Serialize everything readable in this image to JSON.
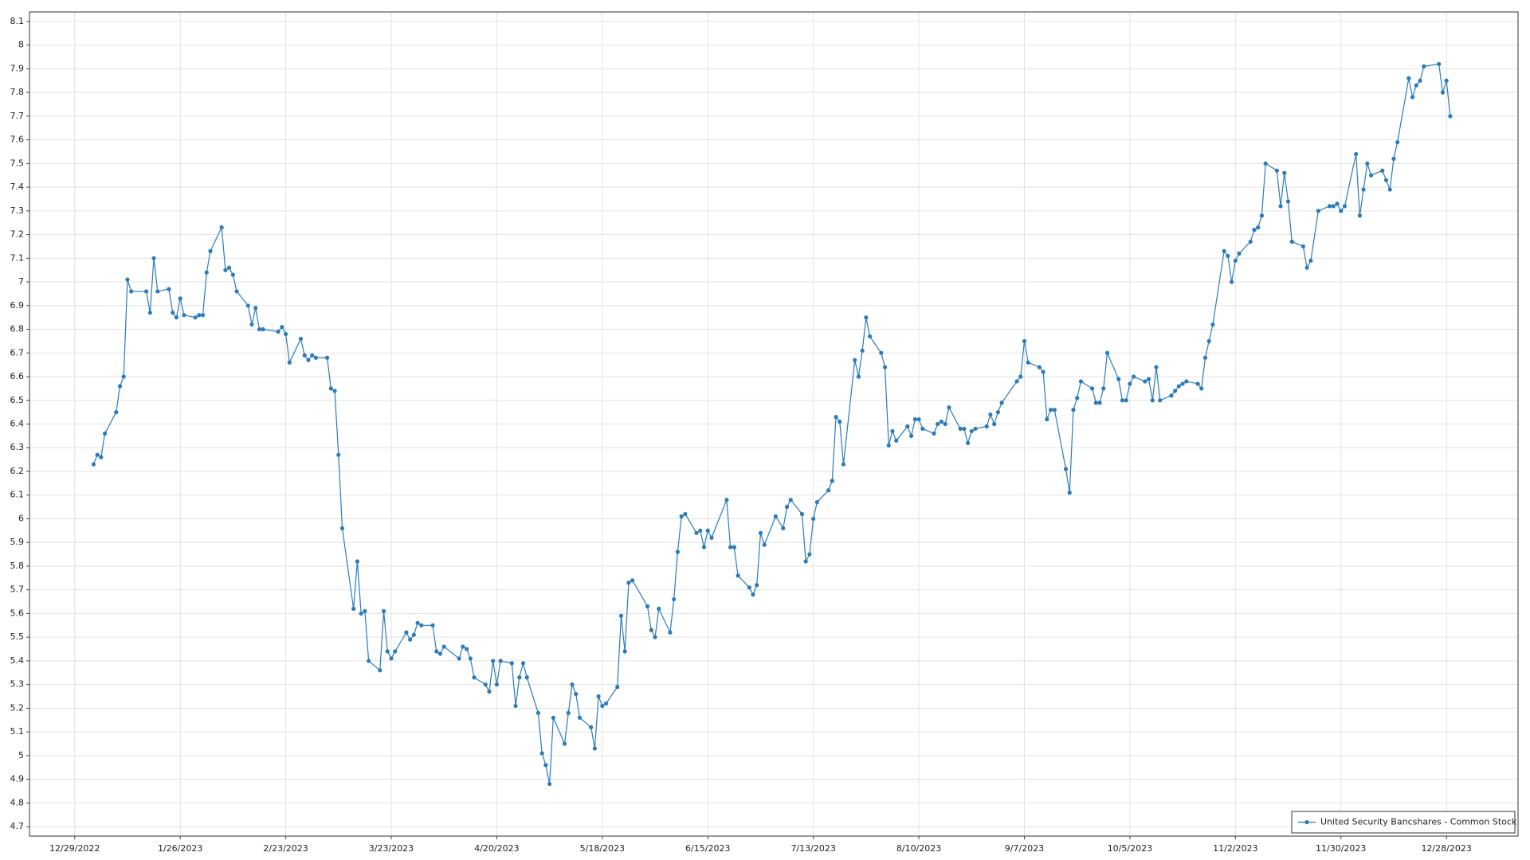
{
  "chart_data": {
    "type": "line",
    "x": [
      "1/3/2023",
      "1/4/2023",
      "1/5/2023",
      "1/6/2023",
      "1/9/2023",
      "1/10/2023",
      "1/11/2023",
      "1/12/2023",
      "1/13/2023",
      "1/17/2023",
      "1/18/2023",
      "1/19/2023",
      "1/20/2023",
      "1/23/2023",
      "1/24/2023",
      "1/25/2023",
      "1/26/2023",
      "1/27/2023",
      "1/30/2023",
      "1/31/2023",
      "2/1/2023",
      "2/2/2023",
      "2/3/2023",
      "2/6/2023",
      "2/7/2023",
      "2/8/2023",
      "2/9/2023",
      "2/10/2023",
      "2/13/2023",
      "2/14/2023",
      "2/15/2023",
      "2/16/2023",
      "2/17/2023",
      "2/21/2023",
      "2/22/2023",
      "2/23/2023",
      "2/24/2023",
      "2/27/2023",
      "2/28/2023",
      "3/1/2023",
      "3/2/2023",
      "3/3/2023",
      "3/6/2023",
      "3/7/2023",
      "3/8/2023",
      "3/9/2023",
      "3/10/2023",
      "3/13/2023",
      "3/14/2023",
      "3/15/2023",
      "3/16/2023",
      "3/17/2023",
      "3/20/2023",
      "3/21/2023",
      "3/22/2023",
      "3/23/2023",
      "3/24/2023",
      "3/27/2023",
      "3/28/2023",
      "3/29/2023",
      "3/30/2023",
      "3/31/2023",
      "4/3/2023",
      "4/4/2023",
      "4/5/2023",
      "4/6/2023",
      "4/10/2023",
      "4/11/2023",
      "4/12/2023",
      "4/13/2023",
      "4/14/2023",
      "4/17/2023",
      "4/18/2023",
      "4/19/2023",
      "4/20/2023",
      "4/21/2023",
      "4/24/2023",
      "4/25/2023",
      "4/26/2023",
      "4/27/2023",
      "4/28/2023",
      "5/1/2023",
      "5/2/2023",
      "5/3/2023",
      "5/4/2023",
      "5/5/2023",
      "5/8/2023",
      "5/9/2023",
      "5/10/2023",
      "5/11/2023",
      "5/12/2023",
      "5/15/2023",
      "5/16/2023",
      "5/17/2023",
      "5/18/2023",
      "5/19/2023",
      "5/22/2023",
      "5/23/2023",
      "5/24/2023",
      "5/25/2023",
      "5/26/2023",
      "5/30/2023",
      "5/31/2023",
      "6/1/2023",
      "6/2/2023",
      "6/5/2023",
      "6/6/2023",
      "6/7/2023",
      "6/8/2023",
      "6/9/2023",
      "6/12/2023",
      "6/13/2023",
      "6/14/2023",
      "6/15/2023",
      "6/16/2023",
      "6/20/2023",
      "6/21/2023",
      "6/22/2023",
      "6/23/2023",
      "6/26/2023",
      "6/27/2023",
      "6/28/2023",
      "6/29/2023",
      "6/30/2023",
      "7/3/2023",
      "7/5/2023",
      "7/6/2023",
      "7/7/2023",
      "7/10/2023",
      "7/11/2023",
      "7/12/2023",
      "7/13/2023",
      "7/14/2023",
      "7/17/2023",
      "7/18/2023",
      "7/19/2023",
      "7/20/2023",
      "7/21/2023",
      "7/24/2023",
      "7/25/2023",
      "7/26/2023",
      "7/27/2023",
      "7/28/2023",
      "7/31/2023",
      "8/1/2023",
      "8/2/2023",
      "8/3/2023",
      "8/4/2023",
      "8/7/2023",
      "8/8/2023",
      "8/9/2023",
      "8/10/2023",
      "8/11/2023",
      "8/14/2023",
      "8/15/2023",
      "8/16/2023",
      "8/17/2023",
      "8/18/2023",
      "8/21/2023",
      "8/22/2023",
      "8/23/2023",
      "8/24/2023",
      "8/25/2023",
      "8/28/2023",
      "8/29/2023",
      "8/30/2023",
      "8/31/2023",
      "9/1/2023",
      "9/5/2023",
      "9/6/2023",
      "9/7/2023",
      "9/8/2023",
      "9/11/2023",
      "9/12/2023",
      "9/13/2023",
      "9/14/2023",
      "9/15/2023",
      "9/18/2023",
      "9/19/2023",
      "9/20/2023",
      "9/21/2023",
      "9/22/2023",
      "9/25/2023",
      "9/26/2023",
      "9/27/2023",
      "9/28/2023",
      "9/29/2023",
      "10/2/2023",
      "10/3/2023",
      "10/4/2023",
      "10/5/2023",
      "10/6/2023",
      "10/9/2023",
      "10/10/2023",
      "10/11/2023",
      "10/12/2023",
      "10/13/2023",
      "10/16/2023",
      "10/17/2023",
      "10/18/2023",
      "10/19/2023",
      "10/20/2023",
      "10/23/2023",
      "10/24/2023",
      "10/25/2023",
      "10/26/2023",
      "10/27/2023",
      "10/30/2023",
      "10/31/2023",
      "11/1/2023",
      "11/2/2023",
      "11/3/2023",
      "11/6/2023",
      "11/7/2023",
      "11/8/2023",
      "11/9/2023",
      "11/10/2023",
      "11/13/2023",
      "11/14/2023",
      "11/15/2023",
      "11/16/2023",
      "11/17/2023",
      "11/20/2023",
      "11/21/2023",
      "11/22/2023",
      "11/24/2023",
      "11/27/2023",
      "11/28/2023",
      "11/29/2023",
      "11/30/2023",
      "12/1/2023",
      "12/4/2023",
      "12/5/2023",
      "12/6/2023",
      "12/7/2023",
      "12/8/2023",
      "12/11/2023",
      "12/12/2023",
      "12/13/2023",
      "12/14/2023",
      "12/15/2023",
      "12/18/2023",
      "12/19/2023",
      "12/20/2023",
      "12/21/2023",
      "12/22/2023",
      "12/26/2023",
      "12/27/2023",
      "12/28/2023",
      "12/29/2023"
    ],
    "series": [
      {
        "name": "United Security Bancshares - Common Stock",
        "color": "#2b7bba",
        "values": [
          6.23,
          6.27,
          6.26,
          6.36,
          6.45,
          6.56,
          6.6,
          7.01,
          6.96,
          6.96,
          6.87,
          7.1,
          6.96,
          6.97,
          6.87,
          6.85,
          6.93,
          6.86,
          6.85,
          6.86,
          6.86,
          7.04,
          7.13,
          7.23,
          7.05,
          7.06,
          7.03,
          6.96,
          6.9,
          6.82,
          6.89,
          6.8,
          6.8,
          6.79,
          6.81,
          6.78,
          6.66,
          6.76,
          6.69,
          6.67,
          6.69,
          6.68,
          6.68,
          6.55,
          6.54,
          6.27,
          5.96,
          5.62,
          5.82,
          5.6,
          5.61,
          5.4,
          5.36,
          5.61,
          5.44,
          5.41,
          5.44,
          5.52,
          5.49,
          5.51,
          5.56,
          5.55,
          5.55,
          5.44,
          5.43,
          5.46,
          5.41,
          5.46,
          5.45,
          5.41,
          5.33,
          5.3,
          5.27,
          5.4,
          5.3,
          5.4,
          5.39,
          5.21,
          5.33,
          5.39,
          5.33,
          5.18,
          5.01,
          4.96,
          4.88,
          5.16,
          5.05,
          5.18,
          5.3,
          5.26,
          5.16,
          5.12,
          5.03,
          5.25,
          5.21,
          5.22,
          5.29,
          5.59,
          5.44,
          5.73,
          5.74,
          5.63,
          5.53,
          5.5,
          5.62,
          5.52,
          5.66,
          5.86,
          6.01,
          6.02,
          5.94,
          5.95,
          5.88,
          5.95,
          5.92,
          6.08,
          5.88,
          5.88,
          5.76,
          5.71,
          5.68,
          5.72,
          5.94,
          5.89,
          6.01,
          5.96,
          6.05,
          6.08,
          6.02,
          5.82,
          5.85,
          6.0,
          6.07,
          6.12,
          6.16,
          6.43,
          6.41,
          6.23,
          6.67,
          6.6,
          6.71,
          6.85,
          6.77,
          6.7,
          6.64,
          6.31,
          6.37,
          6.33,
          6.39,
          6.35,
          6.42,
          6.42,
          6.38,
          6.36,
          6.4,
          6.41,
          6.4,
          6.47,
          6.38,
          6.38,
          6.32,
          6.37,
          6.38,
          6.39,
          6.44,
          6.4,
          6.45,
          6.49,
          6.58,
          6.6,
          6.75,
          6.66,
          6.64,
          6.62,
          6.42,
          6.46,
          6.46,
          6.21,
          6.11,
          6.46,
          6.51,
          6.58,
          6.55,
          6.49,
          6.49,
          6.55,
          6.7,
          6.59,
          6.5,
          6.5,
          6.57,
          6.6,
          6.58,
          6.59,
          6.5,
          6.64,
          6.5,
          6.52,
          6.54,
          6.56,
          6.57,
          6.58,
          6.57,
          6.55,
          6.68,
          6.75,
          6.82,
          7.13,
          7.11,
          7.0,
          7.09,
          7.12,
          7.17,
          7.22,
          7.23,
          7.28,
          7.5,
          7.47,
          7.32,
          7.46,
          7.34,
          7.17,
          7.15,
          7.06,
          7.09,
          7.3,
          7.32,
          7.32,
          7.33,
          7.3,
          7.32,
          7.54,
          7.28,
          7.39,
          7.5,
          7.45,
          7.47,
          7.43,
          7.39,
          7.52,
          7.59,
          7.86,
          7.78,
          7.83,
          7.85,
          7.91,
          7.92,
          7.8,
          7.85,
          7.7
        ]
      }
    ],
    "xlim": [
      "12/17/2022",
      "1/16/2024"
    ],
    "xticks": [
      "12/29/2022",
      "1/26/2023",
      "2/23/2023",
      "3/23/2023",
      "4/20/2023",
      "5/18/2023",
      "6/15/2023",
      "7/13/2023",
      "8/10/2023",
      "9/7/2023",
      "10/5/2023",
      "11/2/2023",
      "11/30/2023",
      "12/28/2023"
    ],
    "ylim": [
      4.66,
      8.14
    ],
    "yticks": [
      4.7,
      4.8,
      4.9,
      5,
      5.1,
      5.2,
      5.3,
      5.4,
      5.5,
      5.6,
      5.7,
      5.8,
      5.9,
      6,
      6.1,
      6.2,
      6.3,
      6.4,
      6.5,
      6.6,
      6.7,
      6.8,
      6.9,
      7,
      7.1,
      7.2,
      7.3,
      7.4,
      7.5,
      7.6,
      7.7,
      7.8,
      7.9,
      8,
      8.1
    ],
    "grid": true,
    "legend": "lower right"
  }
}
